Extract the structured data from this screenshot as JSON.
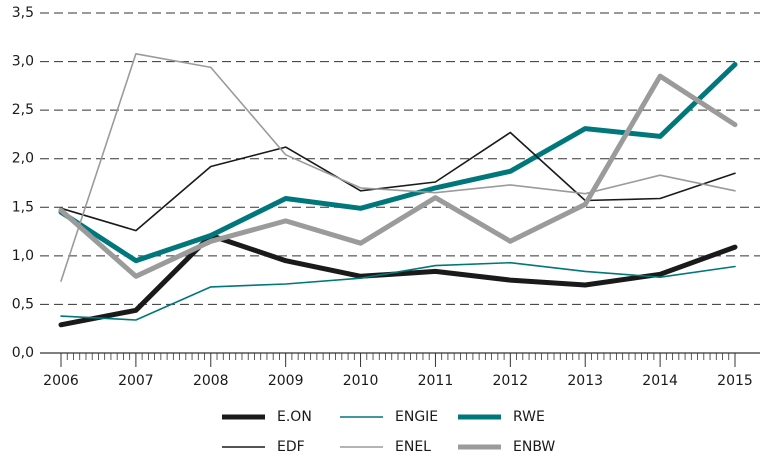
{
  "chart_data": {
    "type": "line",
    "x": [
      2006,
      2007,
      2008,
      2009,
      2010,
      2011,
      2012,
      2013,
      2014,
      2015
    ],
    "xlim": [
      2006,
      2015
    ],
    "xticks": [
      2006,
      2007,
      2008,
      2009,
      2010,
      2011,
      2012,
      2013,
      2014,
      2015
    ],
    "ylim": [
      0,
      3.5
    ],
    "yticks": [
      {
        "value": 0,
        "label": "0,0"
      },
      {
        "value": 0.5,
        "label": "0,5"
      },
      {
        "value": 1,
        "label": "1,0"
      },
      {
        "value": 1.5,
        "label": "1,5"
      },
      {
        "value": 2,
        "label": "2,0"
      },
      {
        "value": 2.5,
        "label": "2,5"
      },
      {
        "value": 3,
        "label": "3,0"
      },
      {
        "value": 3.5,
        "label": "3,5"
      }
    ],
    "grid": true,
    "legend": "bottom",
    "series": [
      {
        "name": "E.ON",
        "color": "#1a1a1a",
        "line_width": 5,
        "values": [
          0.29,
          0.44,
          1.21,
          0.95,
          0.79,
          0.84,
          0.75,
          0.7,
          0.81,
          1.09
        ]
      },
      {
        "name": "ENGIE",
        "color": "#00777b",
        "line_width": 1.6,
        "values": [
          0.38,
          0.34,
          0.68,
          0.71,
          0.77,
          0.9,
          0.93,
          0.84,
          0.78,
          0.89
        ]
      },
      {
        "name": "RWE",
        "color": "#00777b",
        "line_width": 5,
        "values": [
          1.45,
          0.95,
          1.21,
          1.59,
          1.49,
          1.7,
          1.87,
          2.31,
          2.23,
          2.97
        ]
      },
      {
        "name": "EDF",
        "color": "#1a1a1a",
        "line_width": 1.6,
        "values": [
          1.49,
          1.26,
          1.92,
          2.12,
          1.67,
          1.76,
          2.27,
          1.57,
          1.59,
          1.85
        ]
      },
      {
        "name": "ENEL",
        "color": "#9b9b9b",
        "line_width": 1.6,
        "values": [
          0.74,
          3.08,
          2.94,
          2.04,
          1.7,
          1.65,
          1.73,
          1.64,
          1.83,
          1.67
        ]
      },
      {
        "name": "ENBW",
        "color": "#9b9b9b",
        "line_width": 5,
        "values": [
          1.47,
          0.79,
          1.15,
          1.36,
          1.13,
          1.6,
          1.15,
          1.53,
          2.85,
          2.35
        ]
      }
    ]
  }
}
